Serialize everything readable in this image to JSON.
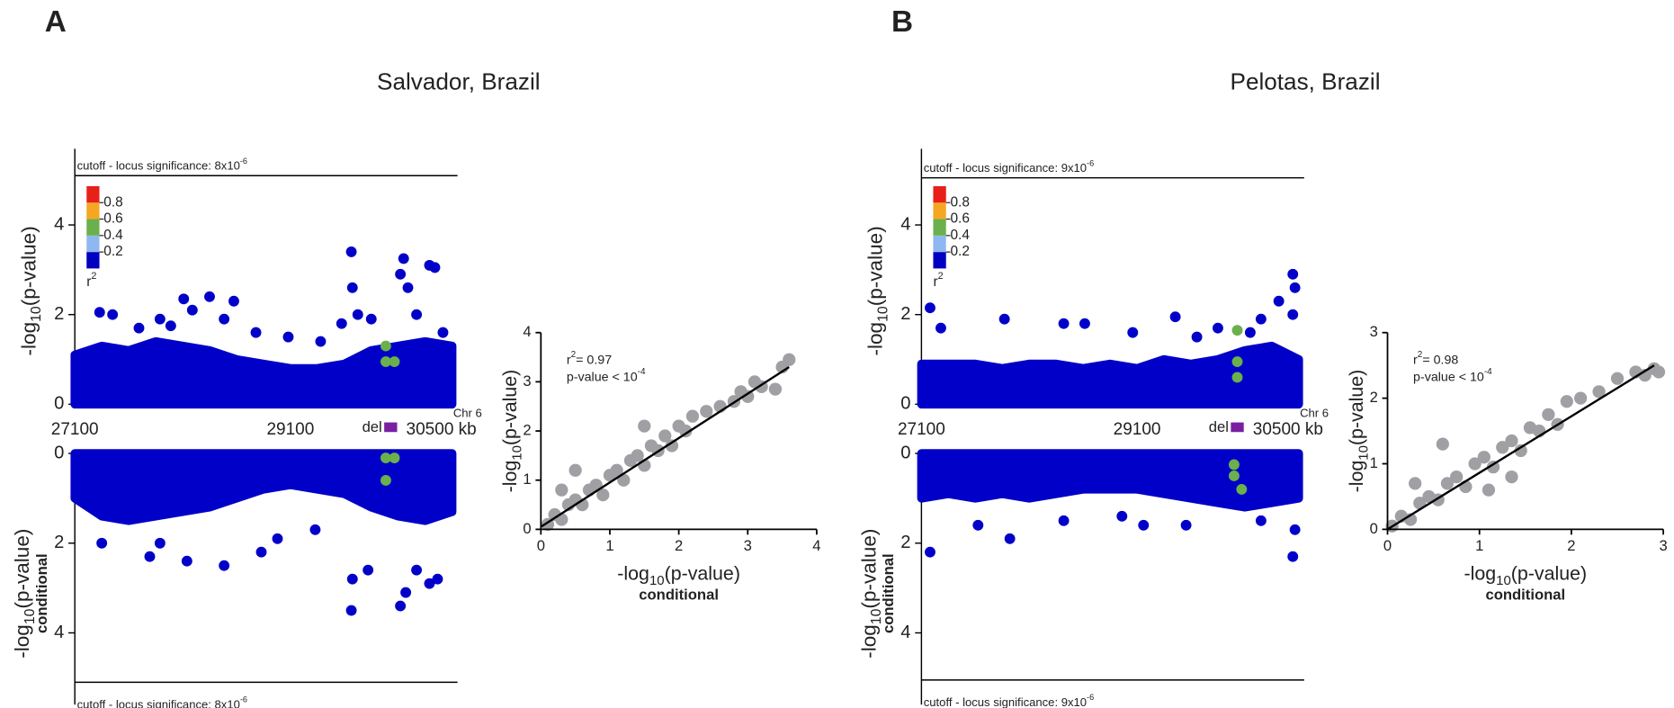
{
  "panels": [
    {
      "letter": "A",
      "title": "Salvador, Brazil",
      "top": {
        "type": "manhattan",
        "xlim": [
          27100,
          30650
        ],
        "ylim": [
          0,
          5.7
        ],
        "yticks": [
          0,
          2,
          4
        ],
        "xticks": [
          27100,
          29100,
          {
            "value": 30500,
            "label": "30500 kb"
          }
        ],
        "chromosome": "Chr 6",
        "deletion": {
          "label": "del",
          "x": [
            29970,
            30090
          ],
          "color": "#7b1fa2"
        },
        "cutoff": 5.1,
        "cutoff_label": "cutoff - locus significance: 8x10",
        "cutoff_exponent": "-6",
        "ylabel": [
          "-log",
          "10",
          "(p-value)"
        ],
        "colorbar": {
          "colors": [
            "#0000c0",
            "#8fb8f0",
            "#6ab04c",
            "#f5a623",
            "#e8201a"
          ],
          "ticks": [
            0.2,
            0.4,
            0.6,
            0.8
          ],
          "label": "r",
          "label_exponent": "2"
        },
        "band": {
          "color": "#0000c8",
          "x": [
            27100,
            27350,
            27600,
            27850,
            28100,
            28350,
            28600,
            28850,
            29100,
            29350,
            29600,
            29850,
            30100,
            30350,
            30600
          ],
          "values": [
            1.1,
            1.3,
            1.2,
            1.4,
            1.3,
            1.2,
            1.0,
            0.9,
            0.8,
            0.8,
            0.9,
            1.2,
            1.3,
            1.4,
            1.3
          ]
        },
        "series": [
          {
            "color": "#0000c8",
            "x": [
              27330,
              27450,
              27695,
              27890,
              27990,
              28110,
              28190,
              28350,
              28485,
              28575,
              28780,
              29080,
              29380,
              29575,
              29665,
              29675,
              29725,
              29850,
              30120,
              30150,
              30190,
              30270,
              30390,
              30440,
              30515
            ],
            "values": [
              2.05,
              2.0,
              1.7,
              1.9,
              1.75,
              2.35,
              2.1,
              2.4,
              1.9,
              2.3,
              1.6,
              1.5,
              1.4,
              1.8,
              3.4,
              2.6,
              2.0,
              1.9,
              2.9,
              3.25,
              2.6,
              2.0,
              3.1,
              3.05,
              1.6
            ]
          },
          {
            "color": "#6ab04c",
            "x": [
              29985,
              29985,
              30065
            ],
            "values": [
              1.3,
              0.95,
              0.95
            ]
          }
        ]
      },
      "bottom": {
        "type": "manhattan",
        "reversed": true,
        "xlim": [
          27100,
          30650
        ],
        "ylim": [
          0,
          5.6
        ],
        "yticks": [
          0,
          2,
          4
        ],
        "cutoff": 5.1,
        "cutoff_label": "cutoff - locus significance: 8x10",
        "cutoff_exponent": "-6",
        "ylabel": [
          "-log",
          "10",
          "(p-value)"
        ],
        "ylabel_note": "conditional",
        "band": {
          "color": "#0000c8",
          "x": [
            27100,
            27350,
            27600,
            27850,
            28100,
            28350,
            28600,
            28850,
            29100,
            29350,
            29600,
            29850,
            30100,
            30350,
            30600
          ],
          "values": [
            1.0,
            1.4,
            1.5,
            1.4,
            1.3,
            1.2,
            1.0,
            0.8,
            0.7,
            0.8,
            0.9,
            1.2,
            1.4,
            1.5,
            1.3
          ]
        },
        "series": [
          {
            "color": "#0000c8",
            "x": [
              27350,
              27795,
              27890,
              28140,
              28485,
              28830,
              28980,
              29330,
              29665,
              29675,
              29820,
              30120,
              30170,
              30270,
              30390,
              30465
            ],
            "values": [
              2.0,
              2.3,
              2.0,
              2.4,
              2.5,
              2.2,
              1.9,
              1.7,
              3.5,
              2.8,
              2.6,
              3.4,
              3.1,
              2.6,
              2.9,
              2.8
            ]
          },
          {
            "color": "#6ab04c",
            "x": [
              29985,
              30065,
              29985
            ],
            "values": [
              0.1,
              0.1,
              0.6
            ]
          }
        ]
      },
      "corr": {
        "type": "scatter",
        "xlim": [
          0,
          4
        ],
        "ylim": [
          0,
          4
        ],
        "xticks": [
          0,
          1,
          2,
          3,
          4
        ],
        "yticks": [
          0,
          1,
          2,
          3,
          4
        ],
        "color": "#a0a0a4",
        "x": [
          0.1,
          0.2,
          0.3,
          0.4,
          0.5,
          0.6,
          0.7,
          0.8,
          0.9,
          1.0,
          1.1,
          1.2,
          1.3,
          1.4,
          1.5,
          1.6,
          1.7,
          1.8,
          1.9,
          2.0,
          2.1,
          2.2,
          2.4,
          2.6,
          2.8,
          2.9,
          3.0,
          3.1,
          3.2,
          3.5,
          3.6,
          3.4,
          0.3,
          0.5,
          1.5
        ],
        "values": [
          0.1,
          0.3,
          0.2,
          0.5,
          0.6,
          0.5,
          0.8,
          0.9,
          0.7,
          1.1,
          1.2,
          1.0,
          1.4,
          1.5,
          1.3,
          1.7,
          1.6,
          1.9,
          1.7,
          2.1,
          2.0,
          2.3,
          2.4,
          2.5,
          2.6,
          2.8,
          2.7,
          3.0,
          2.9,
          3.3,
          3.45,
          2.85,
          0.8,
          1.2,
          2.1
        ],
        "fit": {
          "color": "#000000",
          "x": [
            0,
            3.6
          ],
          "values": [
            0.05,
            3.3
          ]
        },
        "r2": [
          "r",
          "2",
          "= 0.97"
        ],
        "pvalue": [
          "p-value < 10",
          "-4"
        ],
        "xlabel": [
          "-log",
          "10",
          "(p-value)"
        ],
        "xlabel_note": "conditional",
        "ylabel": [
          "-log",
          "10",
          "(p-value)"
        ]
      }
    },
    {
      "letter": "B",
      "title": "Pelotas, Brazil",
      "top": {
        "type": "manhattan",
        "xlim": [
          27100,
          30650
        ],
        "ylim": [
          0,
          5.7
        ],
        "yticks": [
          0,
          2,
          4
        ],
        "xticks": [
          27100,
          29100,
          {
            "value": 30500,
            "label": "30500 kb"
          }
        ],
        "chromosome": "Chr 6",
        "deletion": {
          "label": "del",
          "x": [
            29970,
            30090
          ],
          "color": "#7b1fa2"
        },
        "cutoff": 5.05,
        "cutoff_label": "cutoff - locus significance: 9x10",
        "cutoff_exponent": "-6",
        "ylabel": [
          "-log",
          "10",
          "(p-value)"
        ],
        "colorbar": {
          "colors": [
            "#0000c0",
            "#8fb8f0",
            "#6ab04c",
            "#f5a623",
            "#e8201a"
          ],
          "ticks": [
            0.2,
            0.4,
            0.6,
            0.8
          ],
          "label": "r",
          "label_exponent": "2"
        },
        "band": {
          "color": "#0000c8",
          "x": [
            27100,
            27350,
            27600,
            27850,
            28100,
            28350,
            28600,
            28850,
            29100,
            29350,
            29600,
            29850,
            30100,
            30350,
            30600
          ],
          "values": [
            0.9,
            0.9,
            0.9,
            0.8,
            0.9,
            0.9,
            0.8,
            0.9,
            0.8,
            1.0,
            0.9,
            1.0,
            1.2,
            1.3,
            1.0
          ]
        },
        "series": [
          {
            "color": "#0000c8",
            "x": [
              27180,
              27280,
              27870,
              28420,
              28615,
              29060,
              29455,
              29655,
              29850,
              30150,
              30250,
              30415,
              30545,
              30565,
              30545
            ],
            "values": [
              2.15,
              1.7,
              1.9,
              1.8,
              1.8,
              1.6,
              1.95,
              1.5,
              1.7,
              1.6,
              1.9,
              2.3,
              2.9,
              2.6,
              2.0
            ]
          },
          {
            "color": "#6ab04c",
            "x": [
              30030,
              30030,
              30030
            ],
            "values": [
              1.65,
              0.95,
              0.6
            ]
          }
        ]
      },
      "bottom": {
        "type": "manhattan",
        "reversed": true,
        "xlim": [
          27100,
          30650
        ],
        "ylim": [
          0,
          5.6
        ],
        "yticks": [
          0,
          2,
          4
        ],
        "cutoff": 5.05,
        "cutoff_label": "cutoff - locus significance: 9x10",
        "cutoff_exponent": "-6",
        "ylabel": [
          "-log",
          "10",
          "(p-value)"
        ],
        "ylabel_note": "conditional",
        "band": {
          "color": "#0000c8",
          "x": [
            27100,
            27350,
            27600,
            27850,
            28100,
            28350,
            28600,
            28850,
            29100,
            29350,
            29600,
            29850,
            30100,
            30350,
            30600
          ],
          "values": [
            1.0,
            0.9,
            1.0,
            0.9,
            1.0,
            0.9,
            0.8,
            0.8,
            0.8,
            0.9,
            1.0,
            1.1,
            1.2,
            1.1,
            1.0
          ]
        },
        "series": [
          {
            "color": "#0000c8",
            "x": [
              27180,
              27625,
              27920,
              28420,
              28960,
              29160,
              29555,
              30250,
              30545,
              30565
            ],
            "values": [
              2.2,
              1.6,
              1.9,
              1.5,
              1.4,
              1.6,
              1.6,
              1.5,
              2.3,
              1.7
            ]
          },
          {
            "color": "#6ab04c",
            "x": [
              30000,
              30000,
              30070
            ],
            "values": [
              0.25,
              0.5,
              0.8
            ]
          }
        ]
      },
      "corr": {
        "type": "scatter",
        "xlim": [
          0,
          3
        ],
        "ylim": [
          0,
          3
        ],
        "xticks": [
          0,
          1,
          2,
          3
        ],
        "yticks": [
          0,
          1,
          2,
          3
        ],
        "color": "#a0a0a4",
        "x": [
          0.05,
          0.15,
          0.25,
          0.35,
          0.45,
          0.55,
          0.65,
          0.75,
          0.85,
          0.95,
          1.05,
          1.15,
          1.25,
          1.35,
          1.45,
          1.55,
          1.65,
          1.75,
          1.85,
          1.95,
          2.1,
          2.3,
          2.5,
          2.7,
          2.9,
          2.95,
          2.8,
          0.3,
          0.6,
          1.1,
          1.35
        ],
        "values": [
          0.05,
          0.2,
          0.15,
          0.4,
          0.5,
          0.45,
          0.7,
          0.8,
          0.65,
          1.0,
          1.1,
          0.95,
          1.25,
          1.35,
          1.2,
          1.55,
          1.5,
          1.75,
          1.6,
          1.95,
          2.0,
          2.1,
          2.3,
          2.4,
          2.45,
          2.4,
          2.35,
          0.7,
          1.3,
          0.6,
          0.8
        ],
        "fit": {
          "color": "#000000",
          "x": [
            0,
            2.9
          ],
          "values": [
            0,
            2.5
          ]
        },
        "r2": [
          "r",
          "2",
          "= 0.98"
        ],
        "pvalue": [
          "p-value < 10",
          "-4"
        ],
        "xlabel": [
          "-log",
          "10",
          "(p-value)"
        ],
        "xlabel_note": "conditional",
        "ylabel": [
          "-log",
          "10",
          "(p-value)"
        ]
      }
    }
  ]
}
